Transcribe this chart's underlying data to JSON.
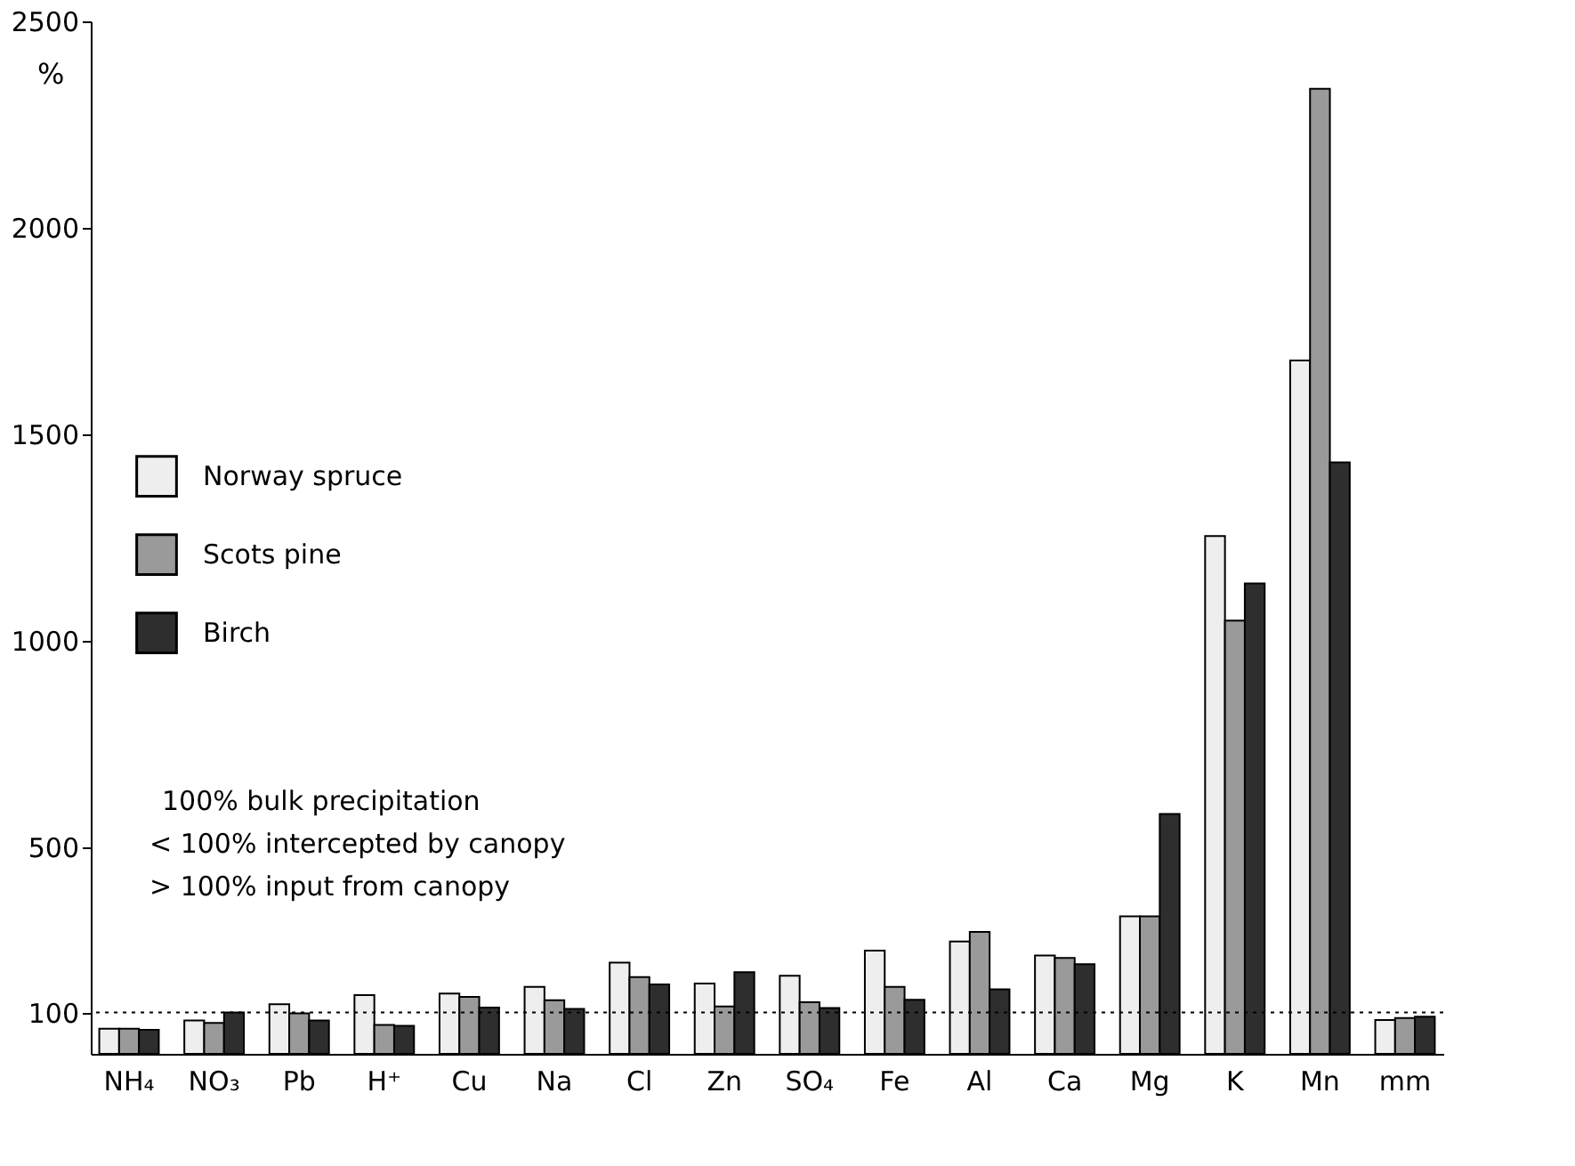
{
  "chart_data": {
    "type": "bar",
    "ylabel": "%",
    "categories": [
      "NH₄",
      "NO₃",
      "Pb",
      "H⁺",
      "Cu",
      "Na",
      "Cl",
      "Zn",
      "SO₄",
      "Fe",
      "Al",
      "Ca",
      "Mg",
      "K",
      "Mn",
      "mm"
    ],
    "series": [
      {
        "name": "Norway spruce",
        "color": "#eeeeee",
        "values": [
          61,
          81,
          120,
          142,
          146,
          162,
          221,
          170,
          189,
          250,
          272,
          238,
          333,
          1254,
          1679,
          82
        ]
      },
      {
        "name": "Scots pine",
        "color": "#9a9a9a",
        "values": [
          61,
          75,
          98,
          70,
          138,
          130,
          186,
          115,
          125,
          162,
          295,
          232,
          333,
          1049,
          2337,
          87
        ]
      },
      {
        "name": "Birch",
        "color": "#2e2e2e",
        "values": [
          58,
          100,
          81,
          68,
          112,
          109,
          168,
          198,
          111,
          131,
          156,
          217,
          581,
          1139,
          1432,
          90
        ]
      }
    ],
    "ylim": [
      0,
      2500
    ],
    "yticks": [
      100,
      500,
      1000,
      1500,
      2000,
      2500
    ],
    "grid": false,
    "legend": "left",
    "ref_lines": [
      {
        "axis": "y",
        "value": 100,
        "line_style": "dotted"
      }
    ],
    "annotations": [
      "100% bulk precipitation",
      "< 100% intercepted by canopy",
      "> 100% input from canopy"
    ]
  }
}
